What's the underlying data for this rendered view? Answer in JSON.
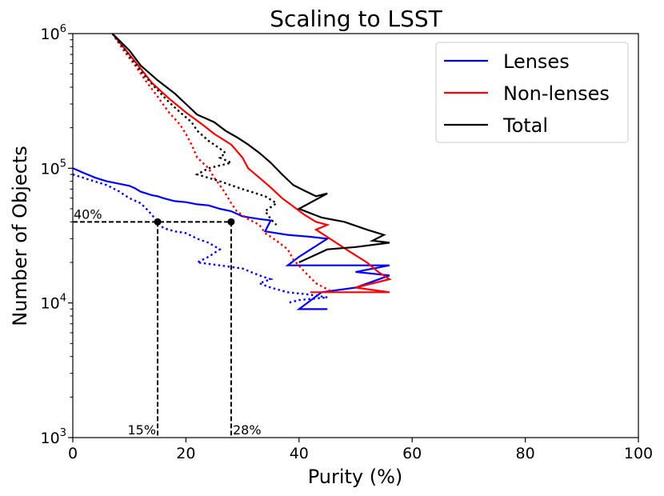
{
  "chart_data": {
    "type": "line",
    "title": "Scaling to LSST",
    "xlabel": "Purity (%)",
    "ylabel": "Number of Objects",
    "xlim": [
      0,
      100
    ],
    "ylim": [
      1000,
      1000000
    ],
    "yscale": "log",
    "grid": false,
    "legend_position": "top-right",
    "x_ticks": [
      "0",
      "20",
      "40",
      "60",
      "80",
      "100"
    ],
    "y_ticks": [
      {
        "base": "10",
        "exp": "3"
      },
      {
        "base": "10",
        "exp": "4"
      },
      {
        "base": "10",
        "exp": "5"
      },
      {
        "base": "10",
        "exp": "6"
      }
    ],
    "series": [
      {
        "name": "Lenses",
        "color": "#0000ff",
        "style": "solid",
        "points": [
          [
            0,
            100000
          ],
          [
            2,
            92000
          ],
          [
            4,
            85000
          ],
          [
            6,
            80000
          ],
          [
            8,
            77000
          ],
          [
            10,
            74000
          ],
          [
            11,
            71000
          ],
          [
            12,
            67000
          ],
          [
            13,
            65000
          ],
          [
            14,
            63000
          ],
          [
            15,
            62000
          ],
          [
            16,
            60000
          ],
          [
            18,
            57000
          ],
          [
            20,
            56000
          ],
          [
            22,
            54000
          ],
          [
            24,
            53000
          ],
          [
            26,
            50000
          ],
          [
            28,
            48000
          ],
          [
            30,
            44000
          ],
          [
            33,
            42000
          ],
          [
            35,
            41000
          ],
          [
            34,
            34000
          ],
          [
            38,
            32000
          ],
          [
            42,
            31000
          ],
          [
            45,
            30000
          ],
          [
            40,
            22000
          ],
          [
            38,
            19000
          ],
          [
            45,
            19000
          ],
          [
            52,
            19000
          ],
          [
            56,
            19000
          ],
          [
            50,
            17000
          ],
          [
            56,
            16000
          ],
          [
            50,
            13000
          ],
          [
            44,
            12000
          ],
          [
            40,
            9000
          ],
          [
            45,
            9000
          ]
        ]
      },
      {
        "name": "Non-lenses",
        "color": "#ff0000",
        "style": "solid",
        "points": [
          [
            7,
            1000000
          ],
          [
            10,
            700000
          ],
          [
            12,
            550000
          ],
          [
            14,
            430000
          ],
          [
            17,
            330000
          ],
          [
            20,
            260000
          ],
          [
            23,
            210000
          ],
          [
            25,
            180000
          ],
          [
            28,
            150000
          ],
          [
            30,
            120000
          ],
          [
            31,
            100000
          ],
          [
            33,
            85000
          ],
          [
            35,
            72000
          ],
          [
            37,
            60000
          ],
          [
            39,
            52000
          ],
          [
            41,
            45000
          ],
          [
            43,
            40000
          ],
          [
            45,
            38000
          ],
          [
            43,
            35000
          ],
          [
            46,
            29000
          ],
          [
            49,
            24000
          ],
          [
            52,
            20000
          ],
          [
            54,
            17000
          ],
          [
            56,
            15000
          ],
          [
            50,
            13000
          ],
          [
            56,
            12000
          ],
          [
            48,
            12000
          ],
          [
            42,
            12000
          ]
        ]
      },
      {
        "name": "Total",
        "color": "#000000",
        "style": "solid",
        "points": [
          [
            7,
            1000000
          ],
          [
            10,
            750000
          ],
          [
            12,
            580000
          ],
          [
            15,
            450000
          ],
          [
            18,
            360000
          ],
          [
            20,
            300000
          ],
          [
            22,
            250000
          ],
          [
            25,
            220000
          ],
          [
            27,
            190000
          ],
          [
            29,
            170000
          ],
          [
            31,
            150000
          ],
          [
            33,
            130000
          ],
          [
            35,
            110000
          ],
          [
            37,
            90000
          ],
          [
            39,
            75000
          ],
          [
            41,
            68000
          ],
          [
            43,
            62000
          ],
          [
            45,
            65000
          ],
          [
            40,
            50000
          ],
          [
            44,
            43000
          ],
          [
            48,
            40000
          ],
          [
            52,
            35000
          ],
          [
            55,
            32000
          ],
          [
            53,
            29000
          ],
          [
            56,
            28000
          ],
          [
            50,
            26000
          ],
          [
            45,
            25000
          ],
          [
            40,
            20000
          ]
        ]
      },
      {
        "name": "Lenses (dotted)",
        "color": "#0000ff",
        "style": "dotted",
        "points": [
          [
            0,
            90000
          ],
          [
            3,
            82000
          ],
          [
            6,
            75000
          ],
          [
            8,
            68000
          ],
          [
            10,
            60000
          ],
          [
            12,
            55000
          ],
          [
            13,
            50000
          ],
          [
            14,
            45000
          ],
          [
            15,
            40000
          ],
          [
            16,
            36000
          ],
          [
            18,
            34000
          ],
          [
            20,
            33000
          ],
          [
            22,
            30000
          ],
          [
            24,
            28000
          ],
          [
            26,
            25000
          ],
          [
            24,
            22000
          ],
          [
            22,
            20000
          ],
          [
            26,
            19000
          ],
          [
            30,
            18000
          ],
          [
            33,
            16000
          ],
          [
            35,
            15000
          ],
          [
            33,
            14000
          ],
          [
            35,
            13000
          ],
          [
            38,
            12000
          ],
          [
            42,
            11500
          ],
          [
            45,
            11000
          ],
          [
            40,
            10500
          ],
          [
            38,
            10000
          ]
        ]
      },
      {
        "name": "Non-lenses (dotted)",
        "color": "#ff0000",
        "style": "dotted",
        "points": [
          [
            7,
            1000000
          ],
          [
            9,
            750000
          ],
          [
            11,
            580000
          ],
          [
            13,
            440000
          ],
          [
            15,
            340000
          ],
          [
            17,
            260000
          ],
          [
            19,
            210000
          ],
          [
            20,
            180000
          ],
          [
            21,
            150000
          ],
          [
            22,
            120000
          ],
          [
            24,
            100000
          ],
          [
            25,
            85000
          ],
          [
            26,
            75000
          ],
          [
            27,
            65000
          ],
          [
            28,
            55000
          ],
          [
            29,
            48000
          ],
          [
            31,
            42000
          ],
          [
            33,
            38000
          ],
          [
            34,
            33000
          ],
          [
            36,
            29000
          ],
          [
            38,
            25000
          ],
          [
            39,
            21000
          ],
          [
            41,
            17000
          ],
          [
            43,
            14000
          ],
          [
            46,
            12000
          ]
        ]
      },
      {
        "name": "Total (dotted)",
        "color": "#000000",
        "style": "dotted",
        "points": [
          [
            7,
            1000000
          ],
          [
            9,
            780000
          ],
          [
            11,
            600000
          ],
          [
            13,
            470000
          ],
          [
            15,
            380000
          ],
          [
            17,
            310000
          ],
          [
            19,
            260000
          ],
          [
            21,
            220000
          ],
          [
            22,
            190000
          ],
          [
            24,
            160000
          ],
          [
            26,
            140000
          ],
          [
            27,
            130000
          ],
          [
            26,
            120000
          ],
          [
            28,
            110000
          ],
          [
            24,
            100000
          ],
          [
            22,
            90000
          ],
          [
            26,
            80000
          ],
          [
            30,
            70000
          ],
          [
            34,
            62000
          ],
          [
            36,
            55000
          ],
          [
            34,
            48000
          ],
          [
            35,
            42000
          ],
          [
            36,
            38000
          ]
        ]
      }
    ],
    "legend": [
      "Lenses",
      "Non-lenses",
      "Total"
    ],
    "annotations": {
      "horizontal": {
        "y": 40000,
        "label": "40%"
      },
      "markers": [
        {
          "x": 15,
          "y": 40000,
          "label": "15%"
        },
        {
          "x": 28,
          "y": 40000,
          "label": "28%"
        }
      ]
    }
  }
}
